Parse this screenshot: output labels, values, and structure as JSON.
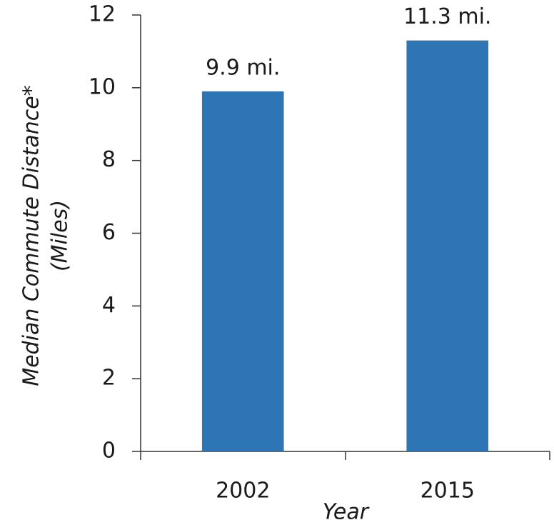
{
  "chart_data": {
    "type": "bar",
    "ylabel_lines": [
      "Median Commute Distance*",
      "(Miles)"
    ],
    "xlabel": "Year",
    "categories": [
      "2002",
      "2015"
    ],
    "values": [
      9.9,
      11.3
    ],
    "value_labels": [
      "9.9 mi.",
      "11.3 mi."
    ],
    "color": "#2e75b6",
    "ylim": [
      0,
      12
    ],
    "yticks": [
      0,
      2,
      4,
      6,
      8,
      10,
      12
    ]
  }
}
